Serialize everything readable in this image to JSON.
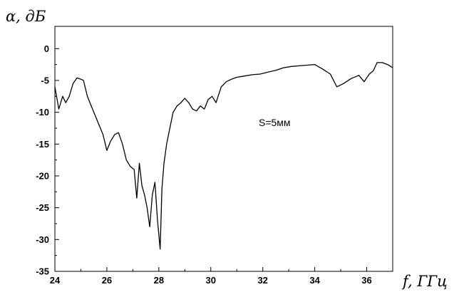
{
  "chart_data": {
    "type": "line",
    "xlabel": "f, ГГц",
    "ylabel": "α, дБ",
    "annotation": "S=5мм",
    "xlim": [
      24,
      37
    ],
    "ylim": [
      -35,
      3.5
    ],
    "x_ticks": [
      24,
      26,
      28,
      30,
      32,
      34,
      36
    ],
    "y_ticks": [
      0,
      -5,
      -10,
      -15,
      -20,
      -25,
      -30,
      -35
    ],
    "grid": false,
    "legend": "none",
    "line_color": "#000000",
    "series": [
      {
        "x": [
          24.0,
          24.15,
          24.3,
          24.42,
          24.55,
          24.7,
          24.85,
          25.0,
          25.1,
          25.25,
          25.4,
          25.55,
          25.7,
          25.85,
          26.0,
          26.15,
          26.3,
          26.45,
          26.6,
          26.75,
          26.9,
          27.05,
          27.15,
          27.25,
          27.35,
          27.45,
          27.55,
          27.65,
          27.75,
          27.85,
          27.95,
          28.05,
          28.12,
          28.2,
          28.3,
          28.4,
          28.55,
          28.7,
          28.85,
          29.0,
          29.15,
          29.3,
          29.45,
          29.6,
          29.75,
          29.9,
          30.05,
          30.2,
          30.4,
          30.6,
          30.8,
          31.0,
          31.3,
          31.6,
          31.9,
          32.2,
          32.5,
          32.8,
          33.1,
          33.4,
          33.7,
          34.0,
          34.3,
          34.6,
          34.85,
          35.1,
          35.4,
          35.7,
          35.9,
          36.1,
          36.25,
          36.4,
          36.6,
          36.8,
          37.0
        ],
        "y": [
          -6.0,
          -9.5,
          -7.5,
          -8.5,
          -7.5,
          -5.5,
          -4.6,
          -4.8,
          -5.0,
          -7.5,
          -9.0,
          -10.5,
          -12.0,
          -13.5,
          -16.0,
          -14.5,
          -13.5,
          -13.2,
          -15.0,
          -17.5,
          -18.5,
          -19.0,
          -23.5,
          -18.0,
          -21.5,
          -23.0,
          -25.0,
          -28.0,
          -23.0,
          -21.0,
          -27.0,
          -31.5,
          -22.0,
          -18.0,
          -15.0,
          -13.0,
          -10.0,
          -9.0,
          -8.5,
          -7.8,
          -8.5,
          -9.5,
          -9.8,
          -9.0,
          -9.5,
          -8.0,
          -7.5,
          -8.5,
          -6.0,
          -5.2,
          -4.8,
          -4.5,
          -4.3,
          -4.1,
          -4.0,
          -3.7,
          -3.4,
          -3.0,
          -2.8,
          -2.7,
          -2.6,
          -2.5,
          -3.2,
          -4.0,
          -6.0,
          -5.5,
          -4.7,
          -4.2,
          -5.2,
          -4.0,
          -3.5,
          -2.2,
          -2.2,
          -2.5,
          -3.0
        ]
      }
    ]
  }
}
